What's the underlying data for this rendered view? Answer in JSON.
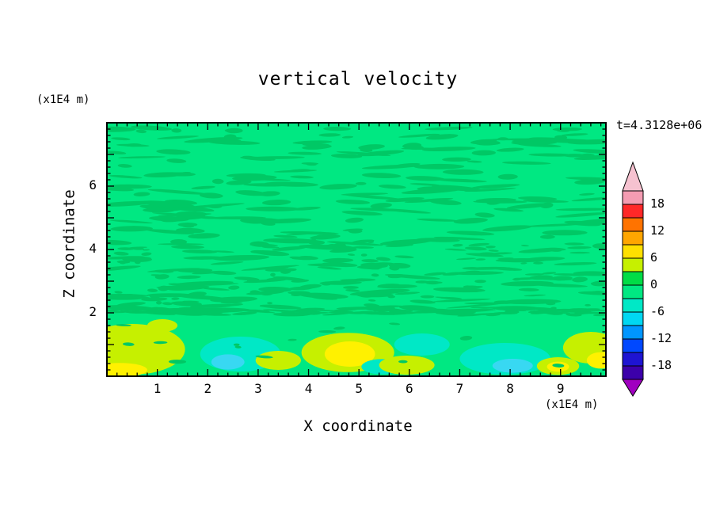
{
  "title": "vertical velocity",
  "timestamp": "t=4.3128e+06",
  "axes": {
    "x_label": "X coordinate",
    "x_unit": "(x1E4 m)",
    "y_label": "Z coordinate",
    "y_unit": "(x1E4 m)",
    "x_ticks": [
      1,
      2,
      3,
      4,
      5,
      6,
      7,
      8,
      9
    ],
    "y_ticks": [
      2,
      4,
      6
    ]
  },
  "colorbar": {
    "labels": [
      "18",
      "12",
      "6",
      "0",
      "-6",
      "-12",
      "-18"
    ],
    "levels": [
      -21,
      -18,
      -15,
      -12,
      -9,
      -6,
      -3,
      0,
      3,
      6,
      9,
      12,
      15,
      18,
      21
    ],
    "segment_colors_top_to_bottom": [
      "#F49CB2",
      "#FF2828",
      "#FF7300",
      "#FFA600",
      "#FFE000",
      "#C6F000",
      "#00DC46",
      "#00E882",
      "#00E8C6",
      "#00D8F2",
      "#0096FF",
      "#0048FF",
      "#1E14D2",
      "#3C00AA"
    ],
    "arrow_top_color": "#F6C2D0",
    "arrow_bottom_color": "#A000C0"
  },
  "chart_data": {
    "type": "heatmap",
    "title": "vertical velocity",
    "time": "t=4.3128e+06",
    "xlabel": "X coordinate (x1E4 m)",
    "ylabel": "Z coordinate (x1E4 m)",
    "xlim": [
      0,
      9.9
    ],
    "ylim": [
      0,
      8
    ],
    "contour_interval": 3,
    "colorbar_range": [
      -21,
      21
    ],
    "legend_position": "right-vertical-colorbar",
    "grid": false,
    "description": "Filled-contour vertical velocity field. Above z=2 the field is near zero: spring-green background (-3..0 band) mottled with wavy darker-green streaks (0..3 band) from gravity waves. Below z=2 a boundary layer holds convective cells: updraft cores in chartreuse/yellow (3..9) and downdraft patches in turquoise/cyan (-3..-9).",
    "palette": {
      "background": "#00E882",
      "streak": "#00C865",
      "chartreuse": "#C6F000",
      "yellow": "#FFF100",
      "aqua": "#00E8C6",
      "cyan": "#38D8F2"
    },
    "features": [
      {
        "x": 0.5,
        "z": 0.85,
        "rx": 1.05,
        "rz": 0.8,
        "color": "chartreuse"
      },
      {
        "x": 0.25,
        "z": 0.2,
        "rx": 0.55,
        "rz": 0.22,
        "color": "yellow"
      },
      {
        "x": 1.1,
        "z": 1.6,
        "rx": 0.3,
        "rz": 0.2,
        "color": "chartreuse"
      },
      {
        "x": 2.65,
        "z": 0.7,
        "rx": 0.8,
        "rz": 0.55,
        "color": "aqua"
      },
      {
        "x": 2.4,
        "z": 0.45,
        "rx": 0.33,
        "rz": 0.24,
        "color": "cyan"
      },
      {
        "x": 3.4,
        "z": 0.5,
        "rx": 0.45,
        "rz": 0.3,
        "color": "chartreuse"
      },
      {
        "x": 4.78,
        "z": 0.75,
        "rx": 0.92,
        "rz": 0.62,
        "color": "chartreuse"
      },
      {
        "x": 4.82,
        "z": 0.7,
        "rx": 0.5,
        "rz": 0.4,
        "color": "yellow"
      },
      {
        "x": 5.45,
        "z": 0.3,
        "rx": 0.4,
        "rz": 0.24,
        "color": "aqua"
      },
      {
        "x": 5.95,
        "z": 0.35,
        "rx": 0.55,
        "rz": 0.3,
        "color": "chartreuse"
      },
      {
        "x": 6.25,
        "z": 1.0,
        "rx": 0.55,
        "rz": 0.35,
        "color": "aqua"
      },
      {
        "x": 7.9,
        "z": 0.55,
        "rx": 0.9,
        "rz": 0.5,
        "color": "aqua"
      },
      {
        "x": 8.05,
        "z": 0.33,
        "rx": 0.4,
        "rz": 0.22,
        "color": "cyan"
      },
      {
        "x": 8.95,
        "z": 0.32,
        "rx": 0.42,
        "rz": 0.28,
        "color": "chartreuse"
      },
      {
        "x": 8.95,
        "z": 0.3,
        "rx": 0.22,
        "rz": 0.16,
        "color": "yellow"
      },
      {
        "x": 9.6,
        "z": 0.9,
        "rx": 0.55,
        "rz": 0.5,
        "color": "chartreuse"
      },
      {
        "x": 9.8,
        "z": 0.5,
        "rx": 0.28,
        "rz": 0.26,
        "color": "yellow"
      }
    ],
    "texture": {
      "seed": 11,
      "groups": [
        {
          "name": "upper-streaks",
          "count": 300,
          "x": [
            0.05,
            9.85
          ],
          "z": [
            2.1,
            7.85
          ],
          "rx": [
            0.1,
            0.6
          ],
          "rz": [
            0.03,
            0.09
          ],
          "color": "streak"
        },
        {
          "name": "mid-fine-ripples",
          "count": 130,
          "x": [
            0.05,
            9.85
          ],
          "z": [
            2.0,
            4.3
          ],
          "rx": [
            0.05,
            0.28
          ],
          "rz": [
            0.025,
            0.06
          ],
          "color": "streak"
        },
        {
          "name": "inversion-ripple",
          "count": 90,
          "x": [
            0.05,
            9.85
          ],
          "z": [
            1.93,
            2.12
          ],
          "rx": [
            0.12,
            0.4
          ],
          "rz": [
            0.025,
            0.055
          ],
          "color": "streak"
        },
        {
          "name": "lower-speckles",
          "count": 14,
          "x": [
            0.1,
            9.8
          ],
          "z": [
            0.25,
            1.7
          ],
          "rx": [
            0.05,
            0.18
          ],
          "rz": [
            0.03,
            0.07
          ],
          "color": "streak"
        }
      ]
    }
  }
}
